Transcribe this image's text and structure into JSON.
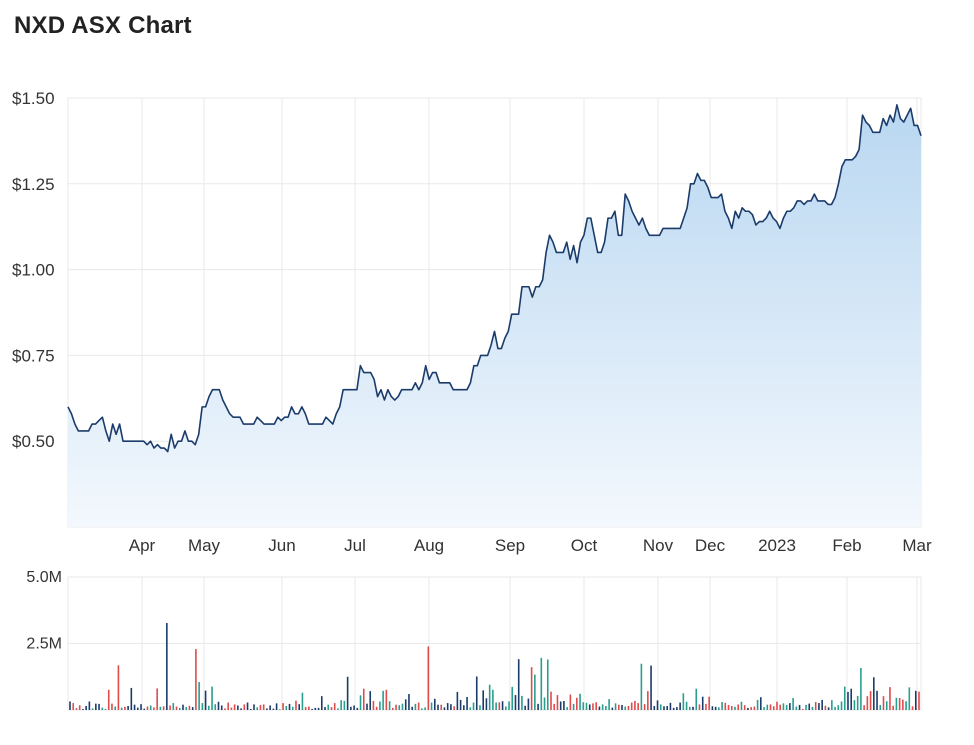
{
  "title": "NXD ASX Chart",
  "colors": {
    "line": "#1b3c6b",
    "area_top": "#b9d7f1",
    "area_bottom": "#f3f8fd",
    "grid": "#e9e9e9",
    "vol_up": "#2a9d8f",
    "vol_down": "#e04b4b",
    "vol_neutral": "#1b3c6b"
  },
  "chart_data": [
    {
      "type": "area",
      "x_axis": {
        "labels": [
          "Apr",
          "May",
          "Jun",
          "Jul",
          "Aug",
          "Sep",
          "Oct",
          "Nov",
          "Dec",
          "2023",
          "Feb",
          "Mar"
        ]
      },
      "y_axis": {
        "ticks": [
          0.5,
          0.75,
          1.0,
          1.25,
          1.5
        ],
        "tick_labels": [
          "$0.50",
          "$0.75",
          "$1.00",
          "$1.25",
          "$1.50"
        ],
        "ylim": [
          0.25,
          1.5
        ]
      },
      "grid": true,
      "series": [
        {
          "values": [
            0.6,
            0.58,
            0.55,
            0.53,
            0.53,
            0.53,
            0.53,
            0.55,
            0.55,
            0.56,
            0.57,
            0.53,
            0.5,
            0.55,
            0.52,
            0.55,
            0.5,
            0.5,
            0.5,
            0.5,
            0.5,
            0.5,
            0.5,
            0.49,
            0.5,
            0.48,
            0.49,
            0.48,
            0.48,
            0.47,
            0.52,
            0.48,
            0.5,
            0.5,
            0.53,
            0.5,
            0.5,
            0.49,
            0.52,
            0.6,
            0.6,
            0.63,
            0.65,
            0.65,
            0.65,
            0.62,
            0.6,
            0.58,
            0.57,
            0.57,
            0.57,
            0.55,
            0.55,
            0.55,
            0.55,
            0.57,
            0.56,
            0.55,
            0.55,
            0.55,
            0.55,
            0.57,
            0.56,
            0.57,
            0.57,
            0.6,
            0.58,
            0.58,
            0.6,
            0.58,
            0.55,
            0.55,
            0.55,
            0.55,
            0.55,
            0.57,
            0.56,
            0.55,
            0.58,
            0.6,
            0.65,
            0.65,
            0.65,
            0.65,
            0.65,
            0.72,
            0.7,
            0.7,
            0.7,
            0.68,
            0.63,
            0.65,
            0.62,
            0.65,
            0.63,
            0.62,
            0.63,
            0.65,
            0.65,
            0.65,
            0.65,
            0.67,
            0.65,
            0.67,
            0.72,
            0.68,
            0.7,
            0.7,
            0.67,
            0.67,
            0.67,
            0.67,
            0.65,
            0.65,
            0.65,
            0.65,
            0.65,
            0.67,
            0.72,
            0.72,
            0.75,
            0.75,
            0.75,
            0.78,
            0.82,
            0.77,
            0.77,
            0.8,
            0.82,
            0.87,
            0.87,
            0.87,
            0.95,
            0.95,
            0.95,
            0.92,
            0.95,
            0.95,
            0.97,
            1.05,
            1.1,
            1.08,
            1.05,
            1.05,
            1.05,
            1.08,
            1.03,
            1.07,
            1.02,
            1.08,
            1.1,
            1.15,
            1.15,
            1.1,
            1.05,
            1.05,
            1.08,
            1.15,
            1.15,
            1.17,
            1.1,
            1.1,
            1.22,
            1.2,
            1.17,
            1.15,
            1.13,
            1.15,
            1.12,
            1.1,
            1.1,
            1.1,
            1.1,
            1.12,
            1.12,
            1.12,
            1.12,
            1.12,
            1.12,
            1.15,
            1.18,
            1.25,
            1.25,
            1.28,
            1.26,
            1.26,
            1.24,
            1.21,
            1.21,
            1.21,
            1.22,
            1.17,
            1.15,
            1.12,
            1.17,
            1.15,
            1.18,
            1.17,
            1.17,
            1.16,
            1.13,
            1.14,
            1.14,
            1.15,
            1.17,
            1.15,
            1.14,
            1.12,
            1.15,
            1.17,
            1.17,
            1.18,
            1.2,
            1.2,
            1.19,
            1.2,
            1.2,
            1.22,
            1.2,
            1.2,
            1.2,
            1.19,
            1.19,
            1.21,
            1.25,
            1.3,
            1.32,
            1.32,
            1.32,
            1.33,
            1.35,
            1.45,
            1.43,
            1.42,
            1.4,
            1.4,
            1.4,
            1.44,
            1.42,
            1.45,
            1.43,
            1.48,
            1.44,
            1.43,
            1.45,
            1.47,
            1.42,
            1.42,
            1.39
          ]
        }
      ]
    },
    {
      "type": "bar",
      "y_axis": {
        "ticks": [
          2500000,
          5000000
        ],
        "tick_labels": [
          "2.5M",
          "5.0M"
        ],
        "ylim": [
          0,
          5000000
        ]
      },
      "series": [
        {
          "values": [
            320000,
            260000,
            70000,
            180000,
            40000,
            150000,
            320000,
            60000,
            240000,
            230000,
            90000,
            40000,
            760000,
            240000,
            130000,
            1680000,
            90000,
            120000,
            150000,
            830000,
            200000,
            90000,
            220000,
            50000,
            130000,
            170000,
            100000,
            810000,
            120000,
            140000,
            3270000,
            170000,
            260000,
            130000,
            80000,
            200000,
            110000,
            160000,
            110000,
            2290000,
            1050000,
            260000,
            730000,
            160000,
            880000,
            220000,
            310000,
            170000,
            60000,
            280000,
            90000,
            210000,
            170000,
            60000,
            210000,
            280000,
            40000,
            210000,
            100000,
            190000,
            210000,
            60000,
            170000,
            50000,
            250000,
            30000,
            260000,
            150000,
            230000,
            120000,
            350000,
            220000,
            650000,
            110000,
            130000,
            40000,
            80000,
            80000,
            520000,
            110000,
            200000,
            110000,
            260000,
            60000,
            370000,
            340000,
            1250000,
            120000,
            170000,
            80000,
            550000,
            800000,
            240000,
            710000,
            340000,
            120000,
            320000,
            720000,
            760000,
            330000,
            80000,
            200000,
            180000,
            240000,
            400000,
            600000,
            120000,
            230000,
            280000,
            60000,
            100000,
            2390000,
            280000,
            420000,
            200000,
            200000,
            100000,
            260000,
            220000,
            140000,
            680000,
            380000,
            180000,
            490000,
            100000,
            280000,
            1260000,
            180000,
            740000,
            440000,
            950000,
            760000,
            280000,
            290000,
            330000,
            130000,
            320000,
            870000,
            560000,
            1910000,
            530000,
            160000,
            430000,
            1610000,
            1330000,
            230000,
            1960000,
            470000,
            1900000,
            690000,
            230000,
            560000,
            320000,
            340000,
            110000,
            580000,
            230000,
            460000,
            610000,
            290000,
            270000,
            210000,
            250000,
            290000,
            130000,
            210000,
            150000,
            410000,
            90000,
            250000,
            200000,
            190000,
            130000,
            150000,
            280000,
            340000,
            260000,
            1740000,
            220000,
            710000,
            1670000,
            150000,
            360000,
            210000,
            140000,
            150000,
            270000,
            80000,
            110000,
            280000,
            630000,
            310000,
            120000,
            120000,
            800000,
            210000,
            500000,
            230000,
            500000,
            140000,
            120000,
            100000,
            300000,
            270000,
            190000,
            150000,
            120000,
            210000,
            310000,
            180000,
            80000,
            110000,
            130000,
            380000,
            480000,
            110000,
            200000,
            210000,
            140000,
            310000,
            200000,
            250000,
            190000,
            260000,
            450000,
            130000,
            190000,
            40000,
            190000,
            240000,
            120000,
            300000,
            260000,
            380000,
            160000,
            100000,
            370000,
            120000,
            180000,
            320000,
            880000,
            680000,
            800000,
            370000,
            530000,
            1580000,
            180000,
            520000,
            710000,
            1230000,
            720000,
            190000,
            520000,
            330000,
            860000,
            160000,
            460000,
            450000,
            390000,
            330000,
            850000,
            140000,
            720000,
            690000
          ]
        }
      ]
    }
  ]
}
